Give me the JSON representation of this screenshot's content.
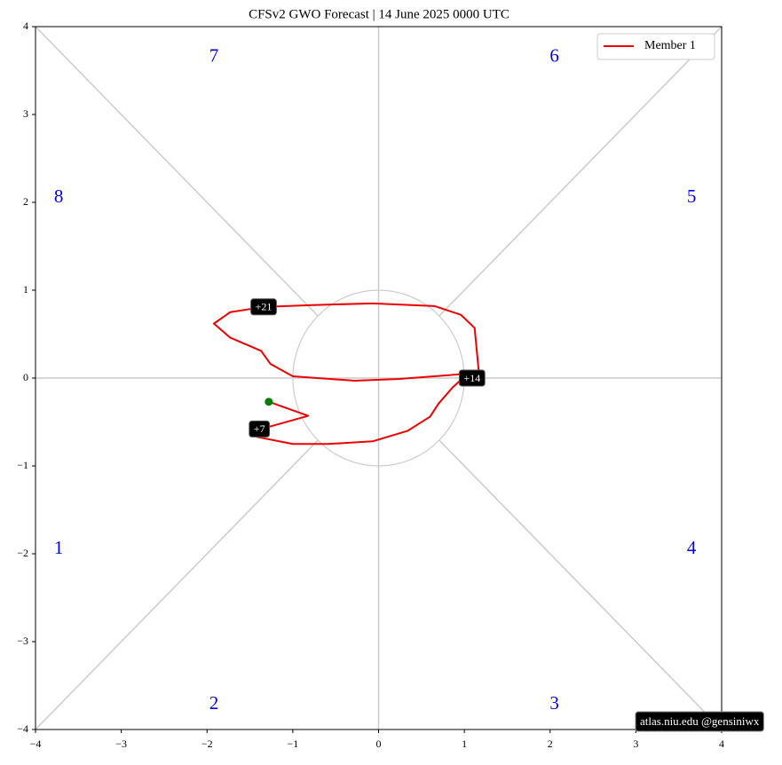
{
  "chart_data": {
    "type": "line",
    "title": "CFSv2 GWO Forecast   |   14  June  2025 0000 UTC",
    "series": [
      {
        "name": "Member 1",
        "color": "#ee0000",
        "x": [
          -1.28,
          -0.82,
          -1.26,
          -1.39,
          -1.42,
          -1.0,
          -0.59,
          -0.07,
          0.34,
          0.6,
          0.7,
          0.86,
          0.96,
          1.09,
          1.17,
          1.15,
          1.12,
          0.96,
          0.65,
          -0.07,
          -0.8,
          -1.31,
          -1.34,
          -1.73,
          -1.92,
          -1.73,
          -1.37,
          -1.26,
          -1.0,
          -0.28,
          0.24,
          0.91,
          1.0
        ],
        "y": [
          -0.27,
          -0.43,
          -0.55,
          -0.58,
          -0.67,
          -0.75,
          -0.75,
          -0.72,
          -0.6,
          -0.44,
          -0.29,
          -0.11,
          -0.02,
          0.0,
          0.06,
          0.26,
          0.57,
          0.72,
          0.82,
          0.85,
          0.83,
          0.81,
          0.81,
          0.75,
          0.62,
          0.46,
          0.31,
          0.16,
          0.02,
          -0.03,
          -0.01,
          0.04,
          0.05
        ]
      }
    ],
    "start_color": "#008000",
    "annotations": [
      {
        "text": "+7",
        "x": -1.39,
        "y": -0.58
      },
      {
        "text": "+14",
        "x": 1.09,
        "y": 0.0
      },
      {
        "text": "+21",
        "x": -1.34,
        "y": 0.81
      }
    ],
    "phase_labels": [
      "1",
      "2",
      "3",
      "4",
      "5",
      "6",
      "7",
      "8"
    ],
    "phase_color": "#0000ee",
    "xlim": [
      -4,
      4
    ],
    "ylim": [
      -4,
      4
    ],
    "xticks": [
      {
        "value": -4,
        "label": "−4"
      },
      {
        "value": -3,
        "label": "−3"
      },
      {
        "value": -2,
        "label": "−2"
      },
      {
        "value": -1,
        "label": "−1"
      },
      0,
      1,
      2,
      3,
      4
    ],
    "yticks": [
      {
        "value": -4,
        "label": "−4"
      },
      {
        "value": -3,
        "label": "−3"
      },
      {
        "value": -2,
        "label": "−2"
      },
      {
        "value": -1,
        "label": "−1"
      },
      0,
      1,
      2,
      3,
      4
    ],
    "legend": "upper right",
    "watermark": "atlas.niu.edu  @gensiniwx"
  }
}
